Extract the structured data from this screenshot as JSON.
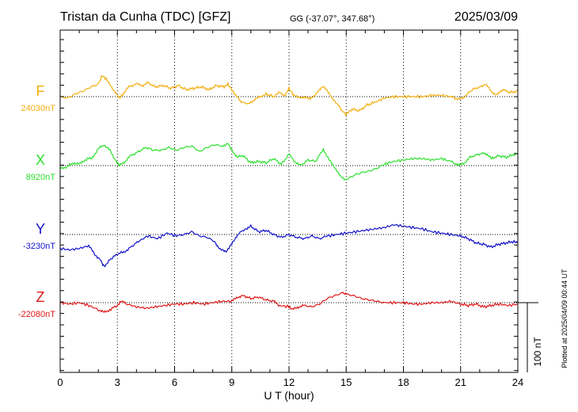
{
  "header": {
    "station": "Tristan da Cunha (TDC)  [GFZ]",
    "coords": "GG (-37.07°, 347.68°)",
    "date": "2025/03/09"
  },
  "chart_data": {
    "type": "line",
    "xlabel": "U T (hour)",
    "xlim": [
      0,
      24
    ],
    "xticks": [
      0,
      3,
      6,
      9,
      12,
      15,
      18,
      21,
      24
    ],
    "scale_bar_label": "100 nT",
    "scale_bar_nT": 100,
    "footer_note": "Plotted at 2025/04/09 00:44 UT",
    "series": [
      {
        "name": "F",
        "baseline_label": "24030nT",
        "baseline_nT": 24030,
        "color": "#f2ae0f",
        "points": [
          [
            0,
            0
          ],
          [
            0.4,
            -2
          ],
          [
            0.8,
            4
          ],
          [
            1.2,
            8
          ],
          [
            1.6,
            14
          ],
          [
            2.0,
            18
          ],
          [
            2.2,
            30
          ],
          [
            2.4,
            26
          ],
          [
            2.6,
            18
          ],
          [
            2.9,
            6
          ],
          [
            3.1,
            -2
          ],
          [
            3.3,
            4
          ],
          [
            3.6,
            14
          ],
          [
            4.0,
            18
          ],
          [
            4.3,
            16
          ],
          [
            4.6,
            20
          ],
          [
            5.0,
            14
          ],
          [
            5.4,
            16
          ],
          [
            5.8,
            12
          ],
          [
            6.2,
            16
          ],
          [
            6.6,
            10
          ],
          [
            7.0,
            12
          ],
          [
            7.4,
            14
          ],
          [
            7.8,
            10
          ],
          [
            8.2,
            16
          ],
          [
            8.6,
            14
          ],
          [
            8.8,
            18
          ],
          [
            9.0,
            10
          ],
          [
            9.2,
            2
          ],
          [
            9.5,
            -8
          ],
          [
            9.9,
            -10
          ],
          [
            10.2,
            -4
          ],
          [
            10.5,
            0
          ],
          [
            10.8,
            4
          ],
          [
            11.2,
            0
          ],
          [
            11.5,
            6
          ],
          [
            11.8,
            2
          ],
          [
            12.0,
            12
          ],
          [
            12.2,
            4
          ],
          [
            12.5,
            -2
          ],
          [
            12.8,
            0
          ],
          [
            13.1,
            -4
          ],
          [
            13.5,
            6
          ],
          [
            13.8,
            16
          ],
          [
            14.1,
            4
          ],
          [
            14.4,
            -6
          ],
          [
            14.8,
            -20
          ],
          [
            15.0,
            -26
          ],
          [
            15.3,
            -18
          ],
          [
            15.7,
            -20
          ],
          [
            16.1,
            -12
          ],
          [
            16.5,
            -8
          ],
          [
            17.0,
            -2
          ],
          [
            17.5,
            0
          ],
          [
            18.0,
            0
          ],
          [
            18.5,
            0
          ],
          [
            19.0,
            0
          ],
          [
            19.5,
            2
          ],
          [
            20.0,
            2
          ],
          [
            20.5,
            0
          ],
          [
            20.9,
            -4
          ],
          [
            21.2,
            0
          ],
          [
            21.6,
            10
          ],
          [
            22.0,
            14
          ],
          [
            22.3,
            18
          ],
          [
            22.6,
            8
          ],
          [
            22.9,
            2
          ],
          [
            23.2,
            10
          ],
          [
            23.6,
            6
          ],
          [
            24.0,
            8
          ]
        ]
      },
      {
        "name": "X",
        "baseline_label": "8920nT",
        "baseline_nT": 8920,
        "color": "#2ee02e",
        "points": [
          [
            0,
            -4
          ],
          [
            0.3,
            -2
          ],
          [
            0.7,
            4
          ],
          [
            1.0,
            2
          ],
          [
            1.3,
            8
          ],
          [
            1.7,
            12
          ],
          [
            2.0,
            24
          ],
          [
            2.3,
            30
          ],
          [
            2.6,
            22
          ],
          [
            2.9,
            8
          ],
          [
            3.1,
            0
          ],
          [
            3.4,
            6
          ],
          [
            3.7,
            14
          ],
          [
            4.1,
            20
          ],
          [
            4.5,
            26
          ],
          [
            4.9,
            22
          ],
          [
            5.3,
            22
          ],
          [
            5.7,
            26
          ],
          [
            6.1,
            22
          ],
          [
            6.5,
            26
          ],
          [
            6.9,
            28
          ],
          [
            7.3,
            20
          ],
          [
            7.7,
            26
          ],
          [
            8.1,
            30
          ],
          [
            8.5,
            28
          ],
          [
            8.8,
            32
          ],
          [
            9.0,
            22
          ],
          [
            9.3,
            12
          ],
          [
            9.6,
            14
          ],
          [
            10.0,
            4
          ],
          [
            10.4,
            6
          ],
          [
            10.8,
            4
          ],
          [
            11.2,
            10
          ],
          [
            11.6,
            2
          ],
          [
            12.0,
            16
          ],
          [
            12.3,
            6
          ],
          [
            12.6,
            0
          ],
          [
            13.0,
            8
          ],
          [
            13.4,
            6
          ],
          [
            13.8,
            24
          ],
          [
            14.1,
            8
          ],
          [
            14.4,
            -2
          ],
          [
            14.7,
            -16
          ],
          [
            15.0,
            -20
          ],
          [
            15.4,
            -14
          ],
          [
            15.8,
            -10
          ],
          [
            16.2,
            -8
          ],
          [
            16.6,
            -4
          ],
          [
            17.0,
            2
          ],
          [
            17.5,
            6
          ],
          [
            18.0,
            8
          ],
          [
            18.5,
            10
          ],
          [
            19.0,
            10
          ],
          [
            19.5,
            8
          ],
          [
            20.0,
            10
          ],
          [
            20.5,
            6
          ],
          [
            20.9,
            0
          ],
          [
            21.2,
            4
          ],
          [
            21.5,
            12
          ],
          [
            21.9,
            16
          ],
          [
            22.3,
            18
          ],
          [
            22.6,
            10
          ],
          [
            23.0,
            14
          ],
          [
            23.4,
            12
          ],
          [
            23.8,
            16
          ],
          [
            24.0,
            18
          ]
        ]
      },
      {
        "name": "Y",
        "baseline_label": "-3230nT",
        "baseline_nT": -3230,
        "color": "#1212cc",
        "points": [
          [
            0,
            -20
          ],
          [
            0.5,
            -22
          ],
          [
            1.0,
            -20
          ],
          [
            1.5,
            -16
          ],
          [
            1.8,
            -28
          ],
          [
            2.1,
            -36
          ],
          [
            2.3,
            -46
          ],
          [
            2.6,
            -36
          ],
          [
            3.0,
            -28
          ],
          [
            3.4,
            -24
          ],
          [
            3.7,
            -18
          ],
          [
            4.1,
            -10
          ],
          [
            4.6,
            -2
          ],
          [
            5.1,
            -6
          ],
          [
            5.6,
            2
          ],
          [
            6.1,
            -2
          ],
          [
            6.5,
            0
          ],
          [
            6.9,
            4
          ],
          [
            7.3,
            -2
          ],
          [
            7.7,
            -4
          ],
          [
            8.1,
            -10
          ],
          [
            8.4,
            -22
          ],
          [
            8.7,
            -24
          ],
          [
            9.0,
            -14
          ],
          [
            9.3,
            0
          ],
          [
            9.7,
            8
          ],
          [
            10.0,
            12
          ],
          [
            10.4,
            4
          ],
          [
            10.8,
            6
          ],
          [
            11.2,
            0
          ],
          [
            11.6,
            -4
          ],
          [
            12.0,
            0
          ],
          [
            12.4,
            -4
          ],
          [
            12.8,
            -6
          ],
          [
            13.2,
            -2
          ],
          [
            13.6,
            -6
          ],
          [
            14.0,
            -2
          ],
          [
            14.5,
            0
          ],
          [
            15.0,
            2
          ],
          [
            15.5,
            4
          ],
          [
            16.0,
            6
          ],
          [
            16.5,
            8
          ],
          [
            17.0,
            10
          ],
          [
            17.5,
            14
          ],
          [
            18.0,
            12
          ],
          [
            18.5,
            10
          ],
          [
            19.0,
            8
          ],
          [
            19.5,
            4
          ],
          [
            20.0,
            2
          ],
          [
            20.5,
            0
          ],
          [
            21.0,
            -2
          ],
          [
            21.4,
            -6
          ],
          [
            21.8,
            -12
          ],
          [
            22.2,
            -14
          ],
          [
            22.6,
            -18
          ],
          [
            23.0,
            -14
          ],
          [
            23.4,
            -12
          ],
          [
            23.8,
            -10
          ],
          [
            24.0,
            -12
          ]
        ]
      },
      {
        "name": "Z",
        "baseline_label": "-22080nT",
        "baseline_nT": -22080,
        "color": "#e01818",
        "points": [
          [
            0,
            0
          ],
          [
            0.5,
            -2
          ],
          [
            1.0,
            0
          ],
          [
            1.5,
            -4
          ],
          [
            2.0,
            -10
          ],
          [
            2.3,
            -14
          ],
          [
            2.6,
            -10
          ],
          [
            3.0,
            -4
          ],
          [
            3.2,
            2
          ],
          [
            3.5,
            -2
          ],
          [
            4.0,
            -6
          ],
          [
            4.5,
            -8
          ],
          [
            5.0,
            -6
          ],
          [
            5.5,
            -4
          ],
          [
            6.0,
            -2
          ],
          [
            6.5,
            -2
          ],
          [
            7.0,
            0
          ],
          [
            7.5,
            -2
          ],
          [
            8.0,
            0
          ],
          [
            8.5,
            2
          ],
          [
            9.0,
            2
          ],
          [
            9.3,
            8
          ],
          [
            9.6,
            10
          ],
          [
            10.0,
            6
          ],
          [
            10.4,
            8
          ],
          [
            10.8,
            4
          ],
          [
            11.2,
            2
          ],
          [
            11.5,
            -4
          ],
          [
            12.0,
            -6
          ],
          [
            12.2,
            -10
          ],
          [
            12.5,
            -6
          ],
          [
            12.8,
            -4
          ],
          [
            13.2,
            -6
          ],
          [
            13.6,
            -2
          ],
          [
            14.0,
            6
          ],
          [
            14.4,
            10
          ],
          [
            14.8,
            14
          ],
          [
            15.0,
            12
          ],
          [
            15.4,
            10
          ],
          [
            15.8,
            6
          ],
          [
            16.2,
            4
          ],
          [
            16.6,
            2
          ],
          [
            17.0,
            0
          ],
          [
            17.5,
            0
          ],
          [
            18.0,
            0
          ],
          [
            18.5,
            -2
          ],
          [
            19.0,
            -2
          ],
          [
            19.5,
            0
          ],
          [
            20.0,
            0
          ],
          [
            20.5,
            2
          ],
          [
            21.0,
            -2
          ],
          [
            21.4,
            -4
          ],
          [
            21.8,
            -2
          ],
          [
            22.2,
            -6
          ],
          [
            22.6,
            -4
          ],
          [
            23.0,
            -2
          ],
          [
            23.5,
            -4
          ],
          [
            24.0,
            -2
          ]
        ]
      }
    ]
  }
}
